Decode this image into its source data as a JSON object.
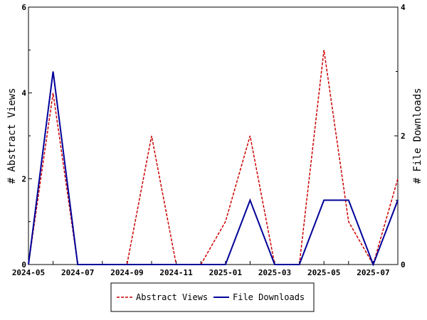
{
  "chart_data": {
    "type": "line",
    "x": [
      "2024-05",
      "2024-06",
      "2024-07",
      "2024-08",
      "2024-09",
      "2024-10",
      "2024-11",
      "2024-12",
      "2025-01",
      "2025-02",
      "2025-03",
      "2025-04",
      "2025-05",
      "2025-06",
      "2025-07",
      "2025-08"
    ],
    "x_ticks": [
      "2024-05",
      "2024-07",
      "2024-09",
      "2024-11",
      "2025-01",
      "2025-03",
      "2025-05",
      "2025-07"
    ],
    "series": [
      {
        "name": "Abstract Views",
        "axis": "left",
        "color": "#cc0000",
        "dash": "dashed",
        "values": [
          0,
          4,
          0,
          0,
          0,
          3,
          0,
          0,
          1,
          3,
          0,
          0,
          5,
          1,
          0,
          2
        ]
      },
      {
        "name": "File Downloads",
        "axis": "right",
        "color": "#000099",
        "dash": "solid",
        "values": [
          0,
          3,
          0,
          0,
          0,
          0,
          0,
          0,
          0,
          1,
          0,
          0,
          1,
          1,
          0,
          1
        ]
      }
    ],
    "ylabel_left": "# Abstract Views",
    "ylabel_right": "# File Downloads",
    "ylim_left": [
      0,
      6
    ],
    "ylim_right": [
      0,
      4
    ],
    "yticks_left": [
      "0",
      "2",
      "4",
      "6"
    ],
    "yticks_right": [
      "0",
      "2",
      "4"
    ],
    "grid": false,
    "legend_position": "bottom"
  }
}
